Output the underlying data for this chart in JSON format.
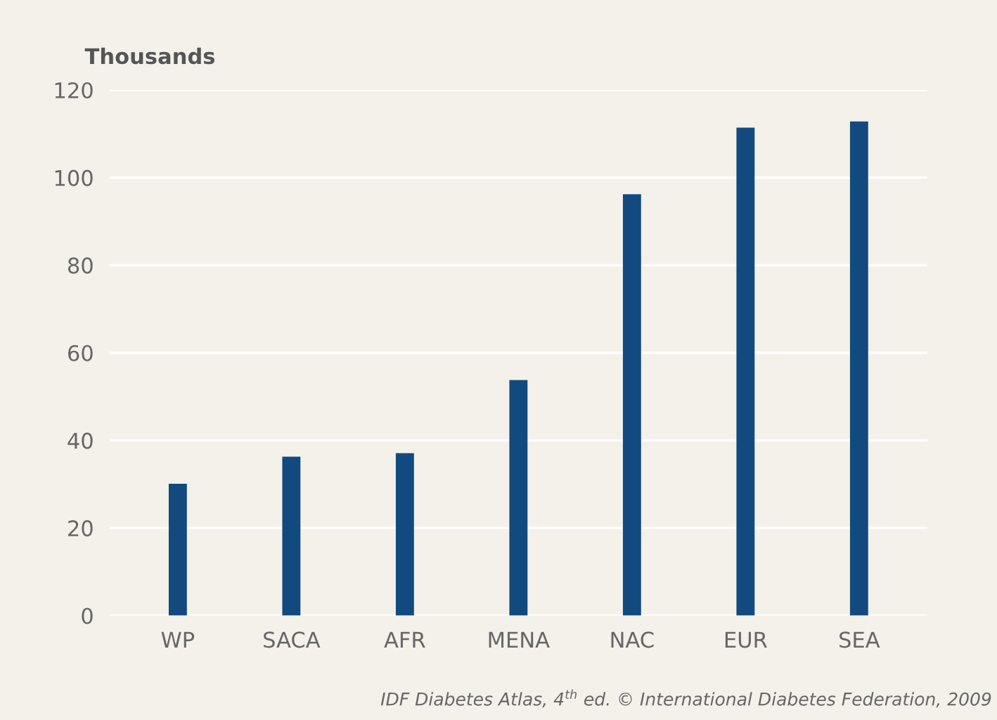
{
  "chart_data": {
    "type": "bar",
    "ylabel": "Thousands",
    "categories": [
      "WP",
      "SACA",
      "AFR",
      "MENA",
      "NAC",
      "EUR",
      "SEA"
    ],
    "values": [
      30.1,
      36.3,
      37.1,
      53.8,
      96.2,
      111.4,
      112.8
    ],
    "color": "#124a80",
    "ylim": [
      0,
      120
    ],
    "yticks": [
      0,
      20,
      40,
      60,
      80,
      100,
      120
    ],
    "grid": "y",
    "annotations": [
      "IDF Diabetes Atlas, 4$^{th}$ ed. © International Diabetes Federation, 2009"
    ]
  }
}
